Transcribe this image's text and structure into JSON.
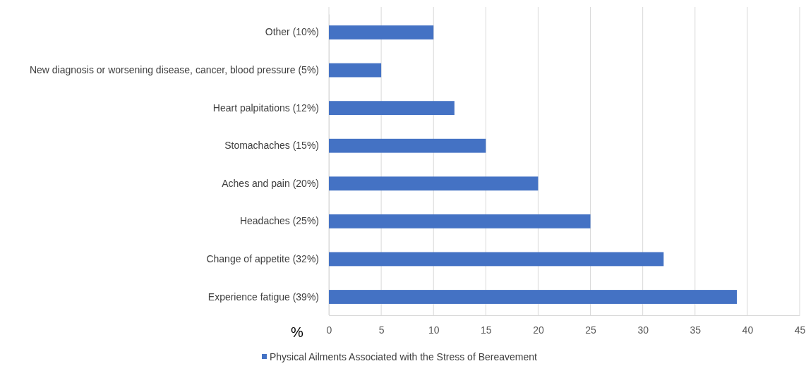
{
  "chart_data": {
    "type": "bar",
    "orientation": "horizontal",
    "xlabel": "%",
    "categories": [
      "Other (10%)",
      "New diagnosis or worsening disease, cancer, blood pressure (5%)",
      "Heart palpitations (12%)",
      "Stomachaches (15%)",
      "Aches and pain (20%)",
      "Headaches (25%)",
      "Change of appetite (32%)",
      "Experience fatigue (39%)"
    ],
    "series": [
      {
        "name": "Physical Ailments Associated with the Stress of Bereavement",
        "color": "#4472c4",
        "values": [
          10,
          5,
          12,
          15,
          20,
          25,
          32,
          39
        ]
      }
    ],
    "xlim": [
      0,
      45
    ],
    "xticks": [
      0,
      5,
      10,
      15,
      20,
      25,
      30,
      35,
      40,
      45
    ],
    "grid": "x",
    "legend": "bottom"
  }
}
